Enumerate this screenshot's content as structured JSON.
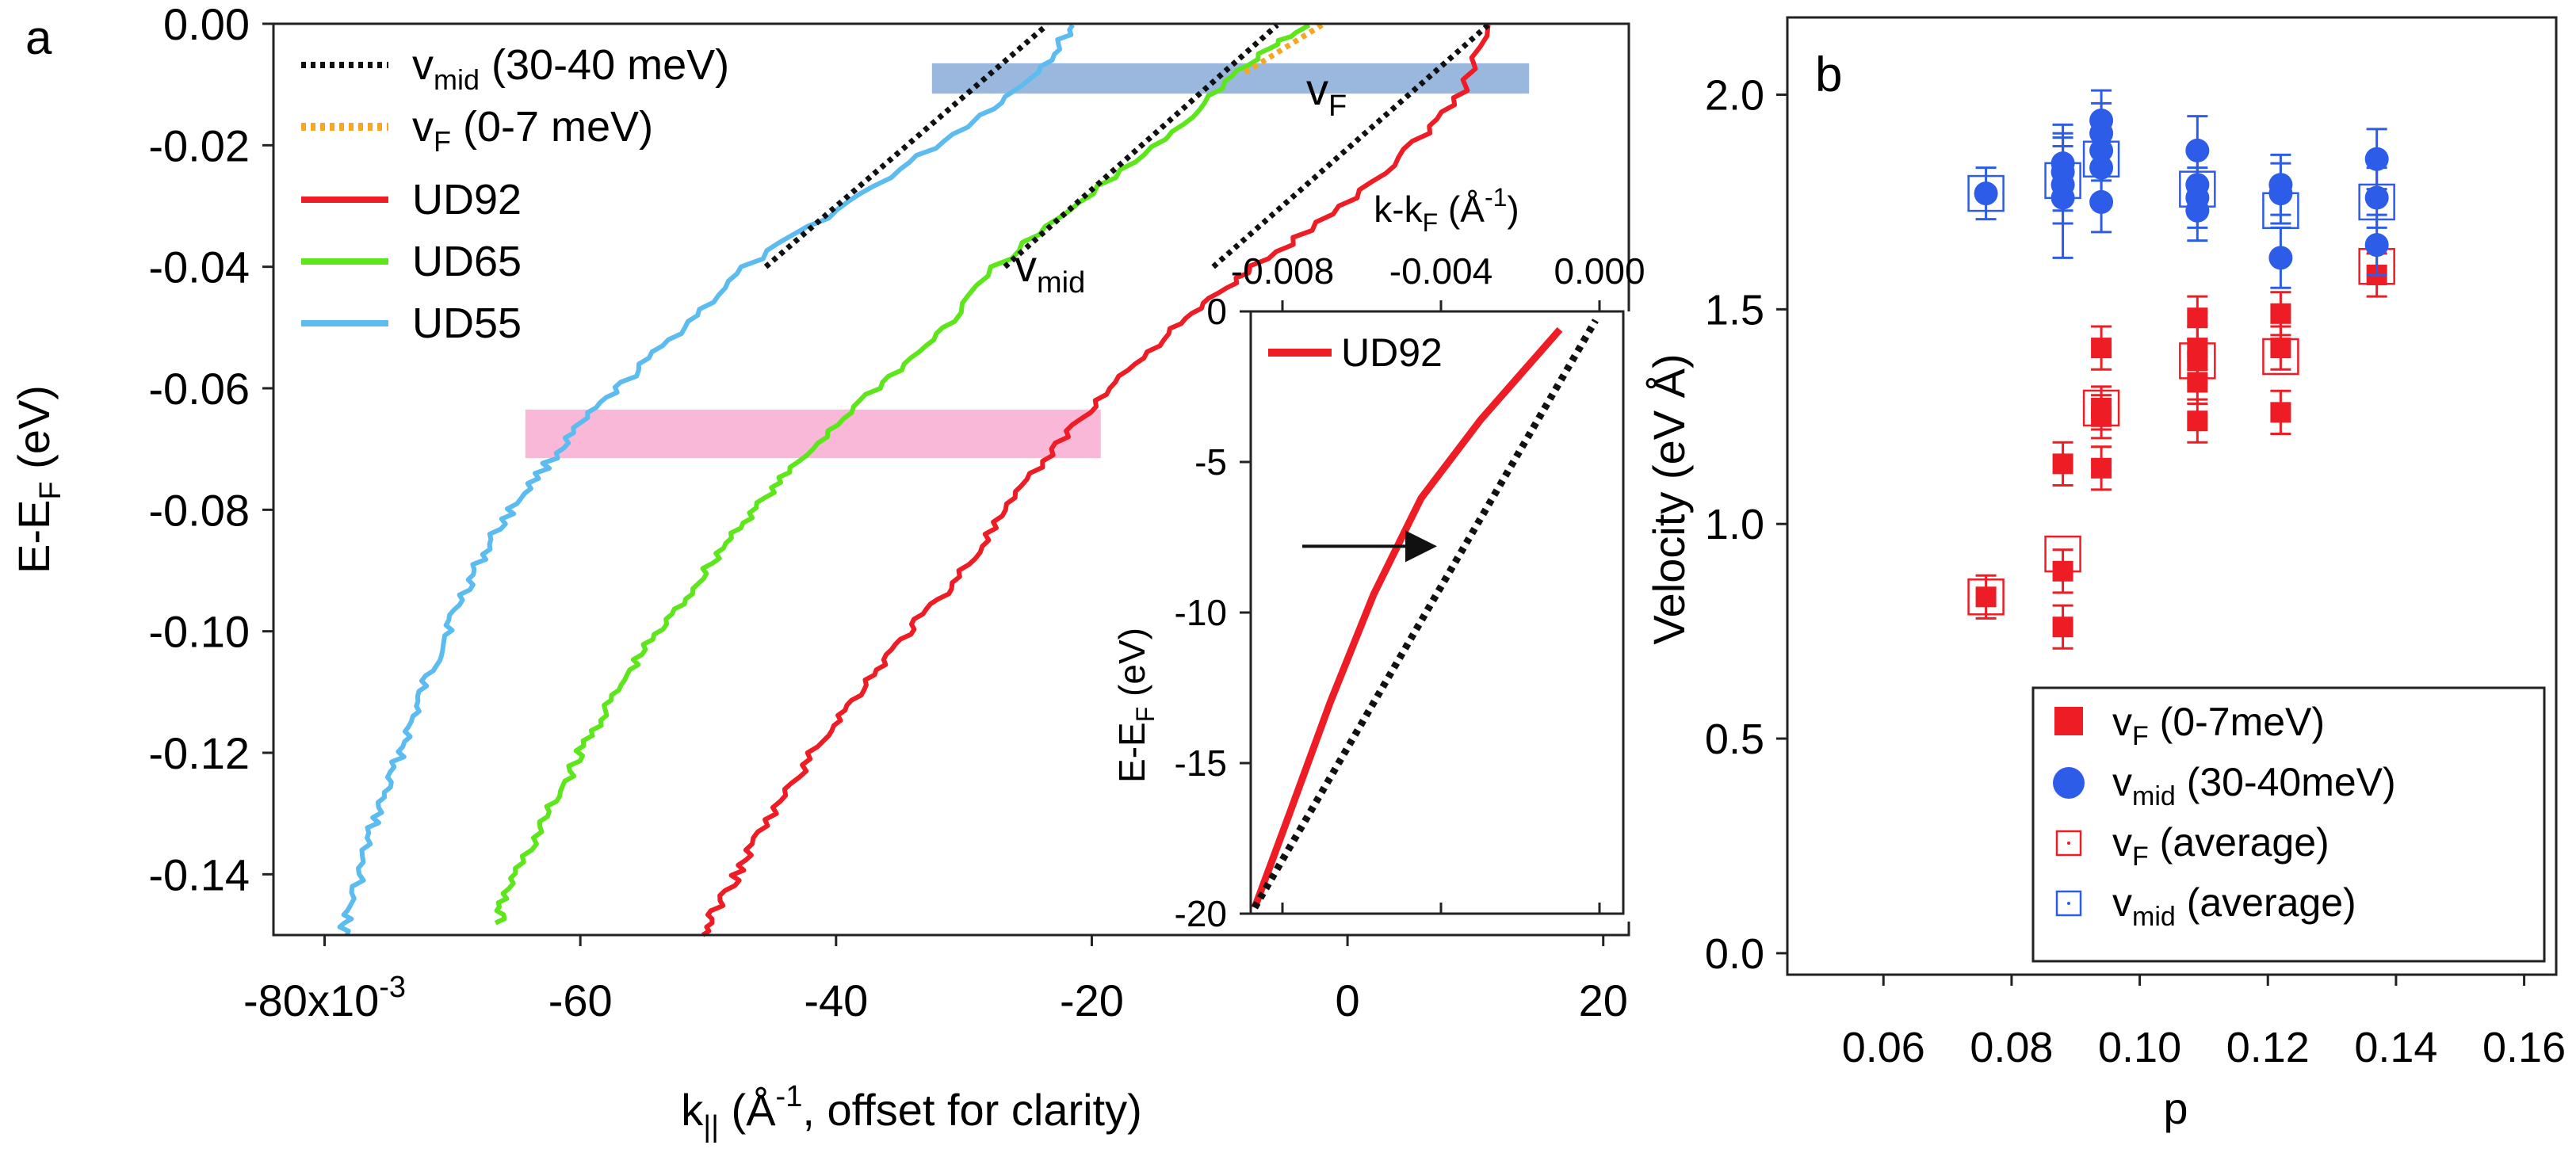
{
  "chart_data": [
    {
      "panel_label": "a",
      "type": "line",
      "xlabel": "k",
      "xlabel_sub": "||",
      "xlabel_rest": " (Å",
      "xlabel_sup": "-1",
      "xlabel_end": ", offset for clarity)",
      "ylabel": "E-E",
      "ylabel_sub": "F",
      "ylabel_end": " (eV)",
      "xlim": [
        -0.084,
        0.022
      ],
      "ylim": [
        -0.15,
        0.0
      ],
      "x_ticks": [
        {
          "value": -0.08,
          "label": "-80x10",
          "sup": "-3"
        },
        {
          "value": -0.06,
          "label": "-60"
        },
        {
          "value": -0.04,
          "label": "-40"
        },
        {
          "value": -0.02,
          "label": "-20"
        },
        {
          "value": 0.0,
          "label": "0"
        },
        {
          "value": 0.02,
          "label": "20"
        }
      ],
      "y_ticks": [
        {
          "value": 0.0,
          "label": "0.00"
        },
        {
          "value": -0.02,
          "label": "-0.02"
        },
        {
          "value": -0.04,
          "label": "-0.04"
        },
        {
          "value": -0.06,
          "label": "-0.06"
        },
        {
          "value": -0.08,
          "label": "-0.08"
        },
        {
          "value": -0.1,
          "label": "-0.10"
        },
        {
          "value": -0.12,
          "label": "-0.12"
        },
        {
          "value": -0.14,
          "label": "-0.14"
        }
      ],
      "legend": [
        {
          "label": "v",
          "sub": "mid",
          "rest": " (30-40 meV)",
          "color": "#111111",
          "style": "dotted"
        },
        {
          "label": "v",
          "sub": "F",
          "rest": " (0-7 meV)",
          "color": "#f5a623",
          "style": "dotted"
        },
        {
          "label": "UD92",
          "color": "#ee1c24",
          "style": "solid"
        },
        {
          "label": "UD65",
          "color": "#5ee61c",
          "style": "solid"
        },
        {
          "label": "UD55",
          "color": "#5cbcef",
          "style": "solid"
        }
      ],
      "bands": [
        {
          "name": "blue-band",
          "x": [
            -0.0325,
            0.0142
          ],
          "y": [
            -0.0115,
            -0.0065
          ],
          "color": "#9ab8dd"
        },
        {
          "name": "pink-band",
          "x": [
            -0.0643,
            -0.0193
          ],
          "y": [
            -0.0715,
            -0.0635
          ],
          "color": "#f9b8d8"
        }
      ],
      "annotations": [
        {
          "text": "v",
          "sub": "F",
          "x": -0.0037,
          "y": -0.0095
        },
        {
          "text": "v",
          "sub": "mid",
          "x": -0.0272,
          "y": -0.0445
        }
      ],
      "series": [
        {
          "name": "UD55",
          "color": "#5cbcef",
          "points": [
            [
              -0.0786,
              -0.15
            ],
            [
              -0.0781,
              -0.146
            ],
            [
              -0.0772,
              -0.14
            ],
            [
              -0.0765,
              -0.134
            ],
            [
              -0.0757,
              -0.129
            ],
            [
              -0.0747,
              -0.124
            ],
            [
              -0.074,
              -0.119
            ],
            [
              -0.073,
              -0.114
            ],
            [
              -0.0722,
              -0.109
            ],
            [
              -0.0712,
              -0.104
            ],
            [
              -0.0703,
              -0.099
            ],
            [
              -0.0692,
              -0.094
            ],
            [
              -0.068,
              -0.089
            ],
            [
              -0.0667,
              -0.084
            ],
            [
              -0.0651,
              -0.079
            ],
            [
              -0.0632,
              -0.074
            ],
            [
              -0.0612,
              -0.069
            ],
            [
              -0.059,
              -0.064
            ],
            [
              -0.0565,
              -0.059
            ],
            [
              -0.0535,
              -0.053
            ],
            [
              -0.0505,
              -0.047
            ],
            [
              -0.047,
              -0.04
            ],
            [
              -0.041,
              -0.032
            ],
            [
              -0.035,
              -0.024
            ],
            [
              -0.03,
              -0.017
            ],
            [
              -0.026,
              -0.011
            ],
            [
              -0.023,
              -0.005
            ],
            [
              -0.0215,
              -0.0002
            ]
          ]
        },
        {
          "name": "UD65",
          "color": "#5ee61c",
          "points": [
            [
              -0.0663,
              -0.148
            ],
            [
              -0.066,
              -0.144
            ],
            [
              -0.0648,
              -0.139
            ],
            [
              -0.0632,
              -0.133
            ],
            [
              -0.062,
              -0.128
            ],
            [
              -0.0607,
              -0.123
            ],
            [
              -0.0595,
              -0.118
            ],
            [
              -0.058,
              -0.113
            ],
            [
              -0.0565,
              -0.108
            ],
            [
              -0.055,
              -0.103
            ],
            [
              -0.053,
              -0.098
            ],
            [
              -0.0512,
              -0.093
            ],
            [
              -0.0495,
              -0.088
            ],
            [
              -0.0477,
              -0.083
            ],
            [
              -0.0455,
              -0.078
            ],
            [
              -0.0433,
              -0.073
            ],
            [
              -0.0405,
              -0.067
            ],
            [
              -0.0375,
              -0.061
            ],
            [
              -0.034,
              -0.055
            ],
            [
              -0.031,
              -0.049
            ],
            [
              -0.0275,
              -0.04
            ],
            [
              -0.0225,
              -0.032
            ],
            [
              -0.0175,
              -0.024
            ],
            [
              -0.013,
              -0.0165
            ],
            [
              -0.0095,
              -0.0095
            ],
            [
              -0.006,
              -0.004
            ],
            [
              -0.003,
              -0.0002
            ]
          ]
        },
        {
          "name": "UD92",
          "color": "#ee1c24",
          "points": [
            [
              -0.0503,
              -0.15
            ],
            [
              -0.0495,
              -0.146
            ],
            [
              -0.048,
              -0.141
            ],
            [
              -0.0467,
              -0.136
            ],
            [
              -0.045,
              -0.13
            ],
            [
              -0.043,
              -0.124
            ],
            [
              -0.0412,
              -0.118
            ],
            [
              -0.0393,
              -0.113
            ],
            [
              -0.0375,
              -0.108
            ],
            [
              -0.0355,
              -0.103
            ],
            [
              -0.0335,
              -0.098
            ],
            [
              -0.0312,
              -0.093
            ],
            [
              -0.029,
              -0.087
            ],
            [
              -0.027,
              -0.081
            ],
            [
              -0.0248,
              -0.075
            ],
            [
              -0.0226,
              -0.069
            ],
            [
              -0.02,
              -0.063
            ],
            [
              -0.0172,
              -0.057
            ],
            [
              -0.014,
              -0.051
            ],
            [
              -0.011,
              -0.046
            ],
            [
              -0.008,
              -0.041
            ],
            [
              -0.003,
              -0.034
            ],
            [
              0.002,
              -0.026
            ],
            [
              0.006,
              -0.018
            ],
            [
              0.009,
              -0.011
            ],
            [
              0.011,
              -0.0002
            ]
          ]
        }
      ],
      "fit_lines": [
        {
          "name": "UD55-vmid",
          "color": "#111111",
          "points": [
            [
              -0.0455,
              -0.04
            ],
            [
              -0.0235,
              -0.0002
            ]
          ]
        },
        {
          "name": "UD65-vmid",
          "color": "#111111",
          "points": [
            [
              -0.0268,
              -0.04
            ],
            [
              -0.0055,
              -0.0002
            ]
          ]
        },
        {
          "name": "UD92-vmid",
          "color": "#111111",
          "points": [
            [
              -0.0105,
              -0.04
            ],
            [
              0.011,
              -0.0002
            ]
          ]
        },
        {
          "name": "UD65-vF",
          "color": "#f5a623",
          "points": [
            [
              -0.008,
              -0.008
            ],
            [
              -0.002,
              -0.0002
            ]
          ]
        }
      ],
      "inset": {
        "type": "line",
        "legend": "UD92",
        "xlabel": "k-k",
        "xlabel_sub": "F",
        "xlabel_rest": " (Å",
        "xlabel_sup": "-1",
        "xlabel_end": ")",
        "ylabel": "E-E",
        "ylabel_sub": "F",
        "ylabel_end": " (eV)",
        "xlim": [
          -0.0088,
          0.0006
        ],
        "ylim": [
          -20,
          0
        ],
        "x_ticks": [
          {
            "value": -0.008,
            "label": "-0.008"
          },
          {
            "value": -0.004,
            "label": "-0.004"
          },
          {
            "value": 0.0,
            "label": "0.000"
          }
        ],
        "y_ticks": [
          {
            "value": 0,
            "label": "0"
          },
          {
            "value": -5,
            "label": "-5"
          },
          {
            "value": -10,
            "label": "-10"
          },
          {
            "value": -15,
            "label": "-15"
          },
          {
            "value": -20,
            "label": "-20"
          }
        ],
        "data_line": {
          "color": "#ee1c24",
          "points": [
            [
              -0.0087,
              -19.8
            ],
            [
              -0.0078,
              -16.6
            ],
            [
              -0.0068,
              -13.0
            ],
            [
              -0.0057,
              -9.4
            ],
            [
              -0.0045,
              -6.2
            ],
            [
              -0.003,
              -3.6
            ],
            [
              -0.001,
              -0.6
            ]
          ]
        },
        "fit_line": {
          "color": "#111111",
          "points": [
            [
              -0.0087,
              -19.8
            ],
            [
              -0.0001,
              -0.3
            ]
          ]
        },
        "arrow": {
          "from": [
            -0.0075,
            -7.8
          ],
          "to": [
            -0.0041,
            -7.8
          ]
        }
      }
    },
    {
      "panel_label": "b",
      "type": "scatter",
      "xlabel": "p",
      "ylabel": "Velocity (eV Å)",
      "xlim": [
        0.045,
        0.165
      ],
      "ylim": [
        -0.05,
        2.18
      ],
      "x_ticks": [
        {
          "value": 0.06,
          "label": "0.06"
        },
        {
          "value": 0.08,
          "label": "0.08"
        },
        {
          "value": 0.1,
          "label": "0.10"
        },
        {
          "value": 0.12,
          "label": "0.12"
        },
        {
          "value": 0.14,
          "label": "0.14"
        },
        {
          "value": 0.16,
          "label": "0.16"
        }
      ],
      "y_ticks": [
        {
          "value": 0.0,
          "label": "0.0"
        },
        {
          "value": 0.5,
          "label": "0.5"
        },
        {
          "value": 1.0,
          "label": "1.0"
        },
        {
          "value": 1.5,
          "label": "1.5"
        },
        {
          "value": 2.0,
          "label": "2.0"
        }
      ],
      "legend": [
        {
          "label": "v",
          "sub": "F",
          "rest": " (0-7meV)",
          "color": "#ee1c24",
          "marker": "square-filled"
        },
        {
          "label": "v",
          "sub": "mid",
          "rest": " (30-40meV)",
          "color": "#2d5ce8",
          "marker": "circle-filled"
        },
        {
          "label": "v",
          "sub": "F",
          "rest": " (average)",
          "color": "#ee1c24",
          "marker": "square-open"
        },
        {
          "label": "v",
          "sub": "mid",
          "rest": " (average)",
          "color": "#2d5ce8",
          "marker": "square-open"
        }
      ],
      "series": [
        {
          "name": "vF (0-7meV)",
          "marker": "square-filled",
          "color": "#ee1c24",
          "points": [
            [
              0.076,
              0.83,
              0.05
            ],
            [
              0.088,
              0.76,
              0.05
            ],
            [
              0.088,
              0.89,
              0.05
            ],
            [
              0.088,
              1.14,
              0.05
            ],
            [
              0.094,
              1.13,
              0.05
            ],
            [
              0.094,
              1.25,
              0.05
            ],
            [
              0.094,
              1.27,
              0.05
            ],
            [
              0.094,
              1.41,
              0.05
            ],
            [
              0.109,
              1.24,
              0.05
            ],
            [
              0.109,
              1.33,
              0.05
            ],
            [
              0.109,
              1.38,
              0.05
            ],
            [
              0.109,
              1.41,
              0.05
            ],
            [
              0.109,
              1.48,
              0.05
            ],
            [
              0.122,
              1.26,
              0.05
            ],
            [
              0.122,
              1.41,
              0.05
            ],
            [
              0.122,
              1.49,
              0.05
            ],
            [
              0.137,
              1.58,
              0.05
            ]
          ]
        },
        {
          "name": "vmid (30-40meV)",
          "marker": "circle-filled",
          "color": "#2d5ce8",
          "points": [
            [
              0.076,
              1.77,
              0.06
            ],
            [
              0.088,
              1.76,
              0.14
            ],
            [
              0.088,
              1.79,
              0.09
            ],
            [
              0.088,
              1.82,
              0.09
            ],
            [
              0.088,
              1.84,
              0.09
            ],
            [
              0.094,
              1.75,
              0.07
            ],
            [
              0.094,
              1.83,
              0.07
            ],
            [
              0.094,
              1.87,
              0.07
            ],
            [
              0.094,
              1.91,
              0.07
            ],
            [
              0.094,
              1.94,
              0.07
            ],
            [
              0.109,
              1.73,
              0.07
            ],
            [
              0.109,
              1.76,
              0.07
            ],
            [
              0.109,
              1.79,
              0.07
            ],
            [
              0.109,
              1.87,
              0.08
            ],
            [
              0.122,
              1.62,
              0.07
            ],
            [
              0.122,
              1.77,
              0.07
            ],
            [
              0.122,
              1.79,
              0.07
            ],
            [
              0.137,
              1.65,
              0.07
            ],
            [
              0.137,
              1.76,
              0.07
            ],
            [
              0.137,
              1.85,
              0.07
            ]
          ]
        },
        {
          "name": "vF (average)",
          "marker": "square-open",
          "color": "#ee1c24",
          "points": [
            [
              0.076,
              0.83
            ],
            [
              0.088,
              0.93
            ],
            [
              0.094,
              1.27
            ],
            [
              0.109,
              1.38
            ],
            [
              0.122,
              1.39
            ],
            [
              0.137,
              1.6
            ]
          ]
        },
        {
          "name": "vmid (average)",
          "marker": "square-open",
          "color": "#2d5ce8",
          "points": [
            [
              0.076,
              1.77
            ],
            [
              0.088,
              1.8
            ],
            [
              0.094,
              1.85
            ],
            [
              0.109,
              1.78
            ],
            [
              0.122,
              1.73
            ],
            [
              0.137,
              1.75
            ]
          ]
        }
      ]
    }
  ]
}
